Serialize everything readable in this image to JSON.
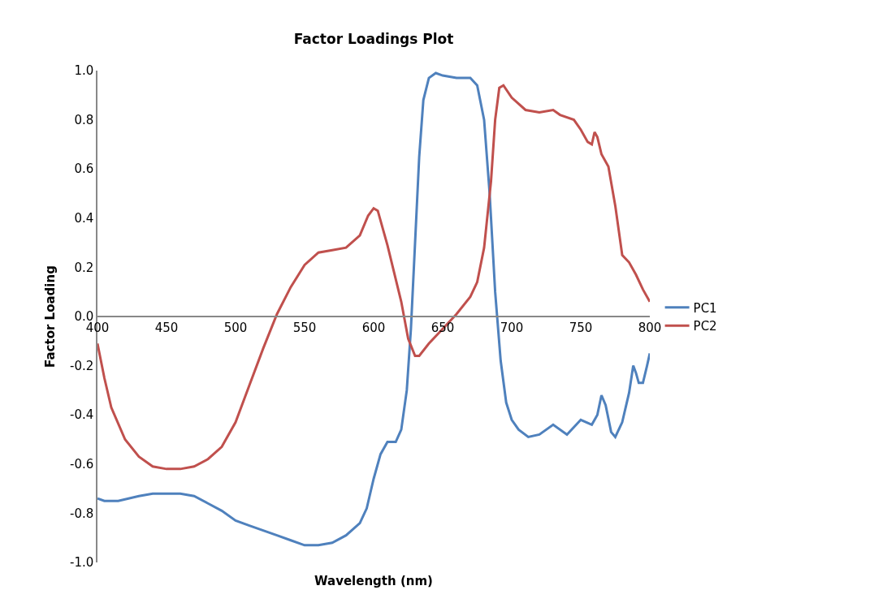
{
  "chart_data": {
    "type": "line",
    "title": "Factor Loadings Plot",
    "xlabel": "Wavelength (nm)",
    "ylabel": "Factor Loading",
    "xlim": [
      400,
      800
    ],
    "xticks": [
      400,
      450,
      500,
      550,
      600,
      650,
      700,
      750,
      800
    ],
    "ylim": [
      -1.0,
      1.0
    ],
    "yticks": [
      {
        "value": -1.0,
        "label": "-1.0"
      },
      {
        "value": -0.8,
        "label": "-0.8"
      },
      {
        "value": -0.6,
        "label": "-0.6"
      },
      {
        "value": -0.4,
        "label": "-0.4"
      },
      {
        "value": -0.2,
        "label": "-0.2"
      },
      {
        "value": 0.0,
        "label": "0.0"
      },
      {
        "value": 0.2,
        "label": "0.2"
      },
      {
        "value": 0.4,
        "label": "0.4"
      },
      {
        "value": 0.6,
        "label": "0.6"
      },
      {
        "value": 0.8,
        "label": "0.8"
      },
      {
        "value": 1.0,
        "label": "1.0"
      }
    ],
    "grid": false,
    "legend": "right",
    "marker": "none",
    "line_style": "solid",
    "series": [
      {
        "name": "PC1",
        "color": "#4f81bd",
        "x": [
          400,
          405,
          415,
          430,
          440,
          460,
          470,
          480,
          490,
          500,
          510,
          520,
          530,
          540,
          550,
          560,
          570,
          580,
          590,
          595,
          600,
          605,
          610,
          616,
          620,
          624,
          627,
          630,
          633,
          636,
          640,
          645,
          650,
          660,
          670,
          675,
          680,
          684,
          688,
          692,
          696,
          700,
          705,
          712,
          720,
          730,
          740,
          750,
          758,
          762,
          765,
          768,
          772,
          775,
          780,
          785,
          788,
          790,
          792,
          795,
          798,
          800
        ],
        "values": [
          -0.74,
          -0.75,
          -0.75,
          -0.73,
          -0.72,
          -0.72,
          -0.73,
          -0.76,
          -0.79,
          -0.83,
          -0.85,
          -0.87,
          -0.89,
          -0.91,
          -0.93,
          -0.93,
          -0.92,
          -0.89,
          -0.84,
          -0.78,
          -0.66,
          -0.56,
          -0.51,
          -0.51,
          -0.46,
          -0.3,
          -0.05,
          0.3,
          0.65,
          0.88,
          0.97,
          0.99,
          0.98,
          0.97,
          0.97,
          0.94,
          0.8,
          0.5,
          0.1,
          -0.18,
          -0.35,
          -0.42,
          -0.46,
          -0.49,
          -0.48,
          -0.44,
          -0.48,
          -0.42,
          -0.44,
          -0.4,
          -0.32,
          -0.36,
          -0.47,
          -0.49,
          -0.43,
          -0.31,
          -0.2,
          -0.23,
          -0.27,
          -0.27,
          -0.2,
          -0.15
        ]
      },
      {
        "name": "PC2",
        "color": "#c0504d",
        "x": [
          400,
          405,
          410,
          420,
          430,
          440,
          450,
          460,
          470,
          480,
          490,
          500,
          510,
          520,
          530,
          540,
          550,
          560,
          570,
          580,
          590,
          596,
          600,
          603,
          610,
          620,
          625,
          630,
          633,
          640,
          650,
          660,
          670,
          675,
          680,
          685,
          688,
          691,
          694,
          700,
          710,
          720,
          730,
          735,
          745,
          750,
          755,
          758,
          760,
          762,
          765,
          770,
          775,
          780,
          785,
          790,
          795,
          800
        ],
        "values": [
          -0.11,
          -0.25,
          -0.37,
          -0.5,
          -0.57,
          -0.61,
          -0.62,
          -0.62,
          -0.61,
          -0.58,
          -0.53,
          -0.43,
          -0.28,
          -0.13,
          0.01,
          0.12,
          0.21,
          0.26,
          0.27,
          0.28,
          0.33,
          0.41,
          0.44,
          0.43,
          0.29,
          0.06,
          -0.09,
          -0.16,
          -0.16,
          -0.11,
          -0.05,
          0.01,
          0.08,
          0.14,
          0.28,
          0.55,
          0.8,
          0.93,
          0.94,
          0.89,
          0.84,
          0.83,
          0.84,
          0.82,
          0.8,
          0.76,
          0.71,
          0.7,
          0.75,
          0.73,
          0.66,
          0.61,
          0.45,
          0.25,
          0.22,
          0.17,
          0.11,
          0.06
        ]
      }
    ]
  }
}
